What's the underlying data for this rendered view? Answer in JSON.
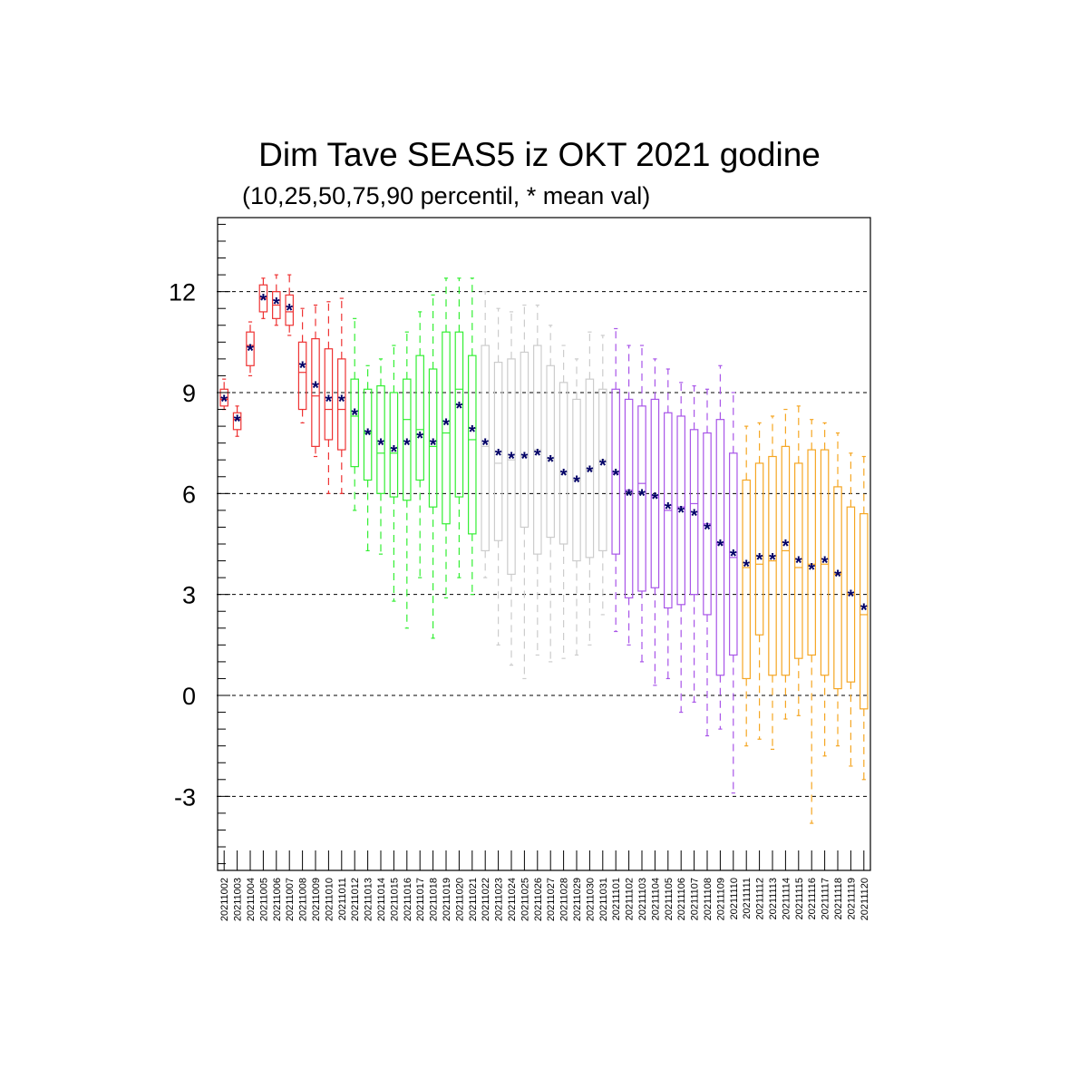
{
  "chart_data": {
    "type": "box",
    "title": "Dim Tave SEAS5 iz OKT 2021 godine",
    "subtitle": "(10,25,50,75,90 percentil, * mean val)",
    "ylim": [
      -5.2,
      14.2
    ],
    "yticks": [
      -3,
      0,
      3,
      6,
      9,
      12
    ],
    "grid": "horizontal dashed",
    "colors": {
      "red": "#ee3333",
      "green": "#33ee33",
      "gray": "#cccccc",
      "purple": "#a855e8",
      "orange": "#f5a623",
      "mean": "#000066",
      "gridline": "#000000"
    },
    "mean_marker": "*",
    "categories": [
      "20211002",
      "20211003",
      "20211004",
      "20211005",
      "20211006",
      "20211007",
      "20211008",
      "20211009",
      "20211010",
      "20211011",
      "20211012",
      "20211013",
      "20211014",
      "20211015",
      "20211016",
      "20211017",
      "20211018",
      "20211019",
      "20211020",
      "20211021",
      "20211022",
      "20211023",
      "20211024",
      "20211025",
      "20211026",
      "20211027",
      "20211028",
      "20211029",
      "20211030",
      "20211031",
      "20211101",
      "20211102",
      "20211103",
      "20211104",
      "20211105",
      "20211106",
      "20211107",
      "20211108",
      "20211109",
      "20211110",
      "20211111",
      "20211112",
      "20211113",
      "20211114",
      "20211115",
      "20211116",
      "20211117",
      "20211118",
      "20211119",
      "20211120"
    ],
    "p10": [
      8.5,
      7.7,
      9.5,
      11.2,
      11.0,
      10.7,
      8.1,
      7.1,
      6.0,
      6.0,
      5.5,
      4.3,
      4.2,
      2.8,
      2.0,
      3.5,
      1.7,
      2.9,
      3.5,
      3.0,
      3.5,
      1.5,
      0.9,
      0.5,
      1.2,
      1.0,
      1.1,
      1.2,
      1.5,
      2.4,
      1.9,
      1.5,
      1.0,
      0.3,
      0.5,
      -0.5,
      -0.2,
      -1.2,
      -1.0,
      -2.9,
      -1.5,
      -1.3,
      -1.6,
      -0.7,
      -0.6,
      -3.8,
      -1.8,
      -1.5,
      -2.1,
      -2.5
    ],
    "p25": [
      8.6,
      7.9,
      9.8,
      11.4,
      11.2,
      11.0,
      8.5,
      7.4,
      7.6,
      7.3,
      6.8,
      6.4,
      6.0,
      5.9,
      5.8,
      6.4,
      5.6,
      5.1,
      5.9,
      4.8,
      4.3,
      4.6,
      3.6,
      5.0,
      4.2,
      4.7,
      4.5,
      4.0,
      4.1,
      4.3,
      4.2,
      2.9,
      3.1,
      3.2,
      2.6,
      2.7,
      3.0,
      2.4,
      0.6,
      1.2,
      0.5,
      1.8,
      0.6,
      0.6,
      1.1,
      1.2,
      0.6,
      0.2,
      0.4,
      -0.4
    ],
    "p50": [
      8.8,
      8.2,
      10.4,
      11.8,
      11.6,
      11.4,
      9.6,
      8.9,
      8.5,
      8.5,
      8.3,
      7.8,
      7.2,
      7.2,
      8.2,
      7.9,
      7.4,
      7.8,
      9.1,
      7.6,
      7.4,
      6.9,
      7.0,
      7.1,
      7.3,
      7.0,
      6.6,
      6.4,
      6.7,
      7.0,
      6.6,
      6.1,
      6.3,
      5.9,
      5.5,
      5.6,
      5.7,
      5.1,
      4.5,
      4.1,
      3.8,
      3.9,
      4.0,
      4.3,
      3.8,
      3.9,
      3.9,
      3.6,
      3.0,
      2.4
    ],
    "p75": [
      9.1,
      8.4,
      10.8,
      12.2,
      12.0,
      11.9,
      10.5,
      10.6,
      10.3,
      10.0,
      9.4,
      9.1,
      9.2,
      9.0,
      9.4,
      10.1,
      9.7,
      10.8,
      10.8,
      10.1,
      10.4,
      9.9,
      10.0,
      10.2,
      10.4,
      9.8,
      9.3,
      8.8,
      9.4,
      9.1,
      9.1,
      8.8,
      8.6,
      8.8,
      8.4,
      8.3,
      7.9,
      7.8,
      8.2,
      7.2,
      6.4,
      6.9,
      7.1,
      7.4,
      6.9,
      7.3,
      7.3,
      6.2,
      5.6,
      5.4
    ],
    "p90": [
      9.4,
      8.6,
      11.1,
      12.4,
      12.5,
      12.5,
      11.5,
      11.6,
      11.7,
      11.8,
      11.2,
      9.8,
      10.0,
      10.4,
      10.8,
      11.4,
      11.9,
      12.4,
      12.4,
      12.4,
      12.0,
      11.5,
      11.4,
      11.6,
      11.6,
      11.0,
      10.4,
      10.0,
      10.8,
      10.7,
      10.9,
      10.4,
      10.4,
      10.0,
      9.7,
      9.3,
      9.2,
      9.1,
      9.8,
      9.0,
      8.0,
      8.1,
      8.3,
      8.5,
      8.6,
      8.2,
      8.1,
      7.8,
      7.2,
      7.1
    ],
    "mean": [
      8.8,
      8.2,
      10.3,
      11.8,
      11.7,
      11.5,
      9.8,
      9.2,
      8.8,
      8.8,
      8.4,
      7.8,
      7.5,
      7.3,
      7.5,
      7.7,
      7.5,
      8.1,
      8.6,
      7.9,
      7.5,
      7.2,
      7.1,
      7.1,
      7.2,
      7.0,
      6.6,
      6.4,
      6.7,
      6.9,
      6.6,
      6.0,
      6.0,
      5.9,
      5.6,
      5.5,
      5.4,
      5.0,
      4.5,
      4.2,
      3.9,
      4.1,
      4.1,
      4.5,
      4.0,
      3.8,
      4.0,
      3.6,
      3.0,
      2.6
    ],
    "groups": [
      {
        "color": "red",
        "count": 10
      },
      {
        "color": "green",
        "count": 10
      },
      {
        "color": "gray",
        "count": 10
      },
      {
        "color": "purple",
        "count": 10
      },
      {
        "color": "orange",
        "count": 10
      }
    ]
  }
}
